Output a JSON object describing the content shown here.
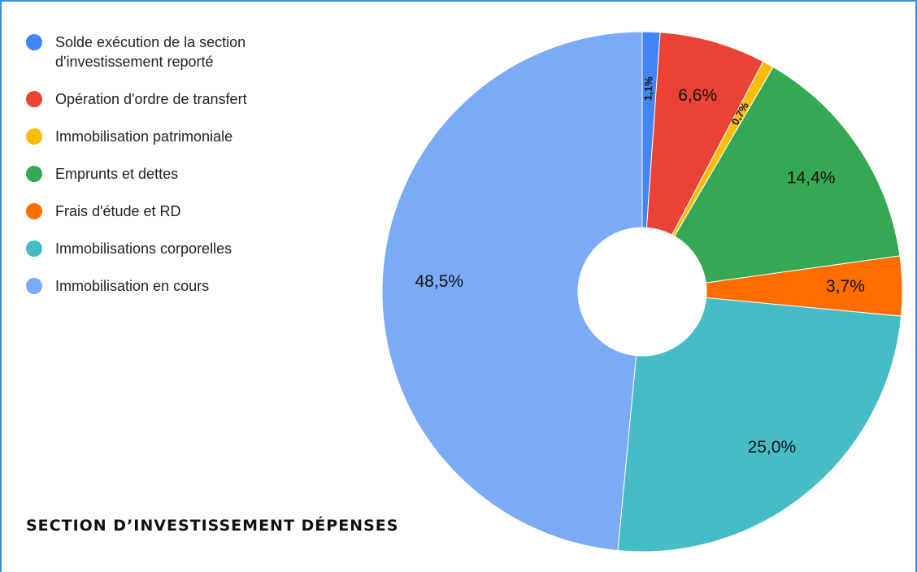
{
  "chart_data": {
    "type": "donut",
    "title": "SECTION D’INVESTISSEMENT DÉPENSES",
    "categories": [
      "Solde exécution de la section d'investissement reporté",
      "Opération d'ordre de transfert",
      "Immobilisation patrimoniale",
      "Emprunts et dettes",
      "Frais d'étude et RD",
      "Immobilisations corporelles",
      "Immobilisation en cours"
    ],
    "values": [
      1.1,
      6.6,
      0.7,
      14.4,
      3.7,
      25.0,
      48.5
    ],
    "value_labels": [
      "1,1%",
      "6,6%",
      "0,7%",
      "14,4%",
      "3,7%",
      "25,0%",
      "48,5%"
    ],
    "colors": [
      "#4285f4",
      "#ea4335",
      "#fbbc04",
      "#34a853",
      "#ff6d01",
      "#46bdc6",
      "#7baaf7"
    ],
    "legend": "left"
  }
}
